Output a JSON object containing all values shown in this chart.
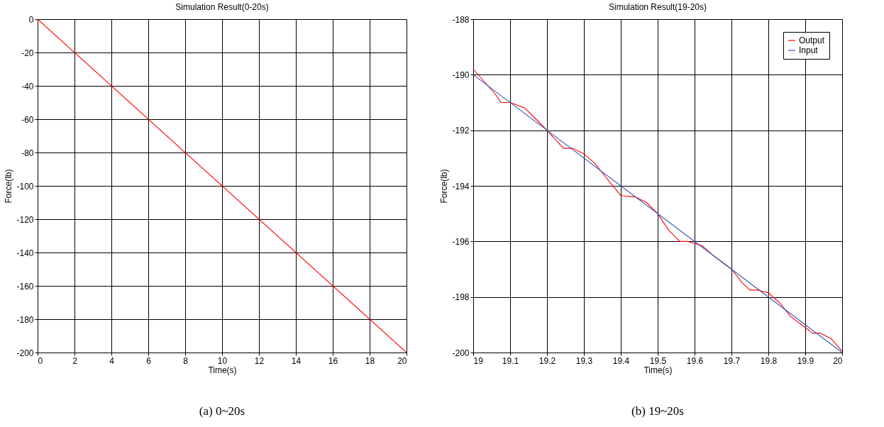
{
  "chart_data": [
    {
      "type": "line",
      "title": "Simulation Result(0-20s)",
      "xlabel": "Time(s)",
      "ylabel": "Force(lb)",
      "annotations": [
        "(a) 0~20s"
      ],
      "xlim": [
        0,
        20
      ],
      "ylim": [
        -200,
        0
      ],
      "xticks": [
        0,
        2,
        4,
        6,
        8,
        10,
        12,
        14,
        16,
        18,
        20
      ],
      "yticks": [
        -200,
        -180,
        -160,
        -140,
        -120,
        -100,
        -80,
        -60,
        -40,
        -20,
        0
      ],
      "grid": true,
      "legend": false,
      "series": [
        {
          "color": "#ff0000",
          "x": [
            0,
            20
          ],
          "values": [
            0,
            -200
          ]
        }
      ]
    },
    {
      "type": "line",
      "title": "Simulation Result(19-20s)",
      "xlabel": "Time(s)",
      "ylabel": "Force(lb)",
      "annotations": [
        "(b) 19~20s"
      ],
      "xlim": [
        19,
        20
      ],
      "ylim": [
        -200,
        -188
      ],
      "xticks": [
        19,
        19.1,
        19.2,
        19.3,
        19.4,
        19.5,
        19.6,
        19.7,
        19.8,
        19.9,
        20
      ],
      "yticks": [
        -200,
        -198,
        -196,
        -194,
        -192,
        -190,
        -188
      ],
      "grid": true,
      "legend": "top right",
      "series": [
        {
          "name": "Output",
          "color": "#ff0000",
          "x": [
            19.0,
            19.02,
            19.06,
            19.075,
            19.1,
            19.14,
            19.17,
            19.2,
            19.22,
            19.245,
            19.27,
            19.3,
            19.33,
            19.36,
            19.4,
            19.44,
            19.47,
            19.5,
            19.53,
            19.56,
            19.58,
            19.62,
            19.65,
            19.7,
            19.73,
            19.75,
            19.77,
            19.8,
            19.83,
            19.86,
            19.9,
            19.92,
            19.94,
            19.97,
            20.0
          ],
          "values": [
            -189.8,
            -190.1,
            -190.7,
            -191.0,
            -191.0,
            -191.2,
            -191.6,
            -192.0,
            -192.3,
            -192.65,
            -192.65,
            -192.85,
            -193.2,
            -193.7,
            -194.35,
            -194.4,
            -194.6,
            -195.0,
            -195.6,
            -196.0,
            -196.0,
            -196.15,
            -196.5,
            -197.0,
            -197.5,
            -197.75,
            -197.75,
            -197.85,
            -198.2,
            -198.7,
            -199.1,
            -199.3,
            -199.3,
            -199.5,
            -199.95
          ]
        },
        {
          "name": "Input",
          "color": "#3355bb",
          "x": [
            19,
            20
          ],
          "values": [
            -190,
            -200
          ]
        }
      ]
    }
  ]
}
